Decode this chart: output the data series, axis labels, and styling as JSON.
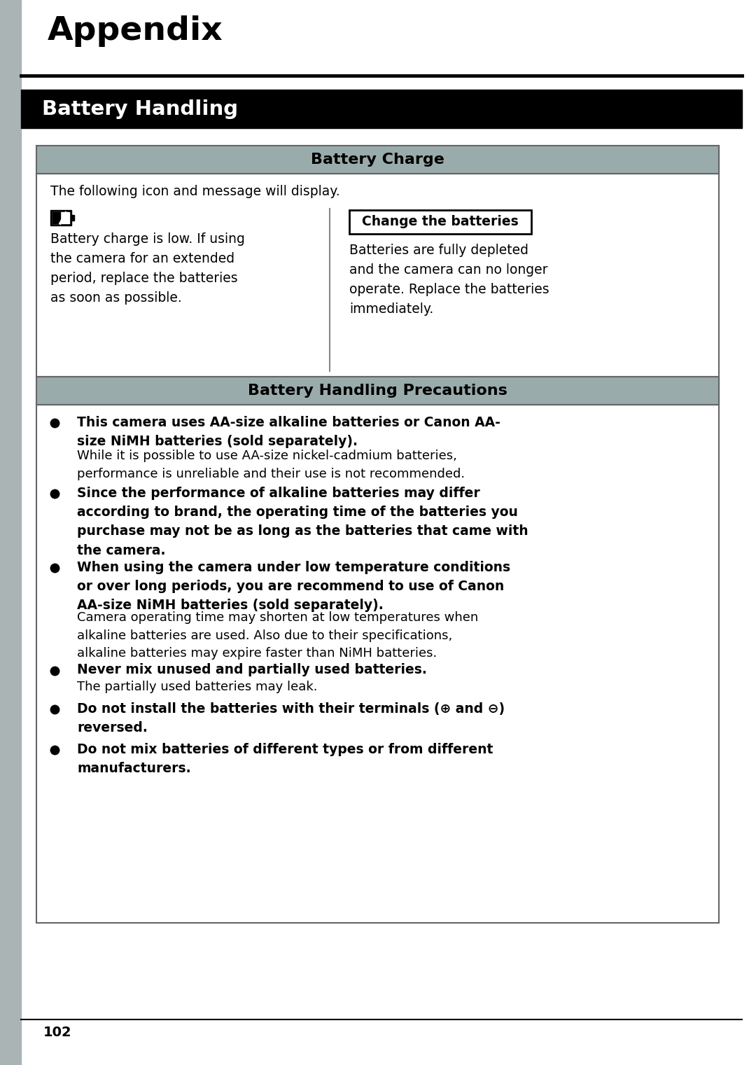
{
  "page_bg": "#ffffff",
  "left_bar_color": "#aab4b4",
  "title_appendix": "Appendix",
  "section_title": "Battery Handling",
  "section_title_bg": "#000000",
  "section_title_color": "#ffffff",
  "table_header1": "Battery Charge",
  "table_header1_bg": "#9aabab",
  "table_header2": "Battery Handling Precautions",
  "table_header2_bg": "#9aabab",
  "table_border_color": "#666666",
  "intro_text": "The following icon and message will display.",
  "left_col_text": "Battery charge is low. If using\nthe camera for an extended\nperiod, replace the batteries\nas soon as possible.",
  "right_box_text": "Change the batteries",
  "right_col_text": "Batteries are fully depleted\nand the camera can no longer\noperate. Replace the batteries\nimmediately.",
  "bullet_items": [
    {
      "bold": "This camera uses AA-size alkaline batteries or Canon AA-\nsize NiMH batteries (sold separately).",
      "normal": "While it is possible to use AA-size nickel-cadmium batteries,\nperformance is unreliable and their use is not recommended."
    },
    {
      "bold": "Since the performance of alkaline batteries may differ\naccording to brand, the operating time of the batteries you\npurchase may not be as long as the batteries that came with\nthe camera.",
      "normal": ""
    },
    {
      "bold": "When using the camera under low temperature conditions\nor over long periods, you are recommend to use of Canon\nAA-size NiMH batteries (sold separately).",
      "normal": "Camera operating time may shorten at low temperatures when\nalkaline batteries are used. Also due to their specifications,\nalkaline batteries may expire faster than NiMH batteries."
    },
    {
      "bold": "Never mix unused and partially used batteries.",
      "normal": "The partially used batteries may leak."
    },
    {
      "bold": "Do not install the batteries with their terminals (⊕ and ⊖)\nreversed.",
      "normal": ""
    },
    {
      "bold": "Do not mix batteries of different types or from different\nmanufacturers.",
      "normal": ""
    }
  ],
  "page_number": "102"
}
